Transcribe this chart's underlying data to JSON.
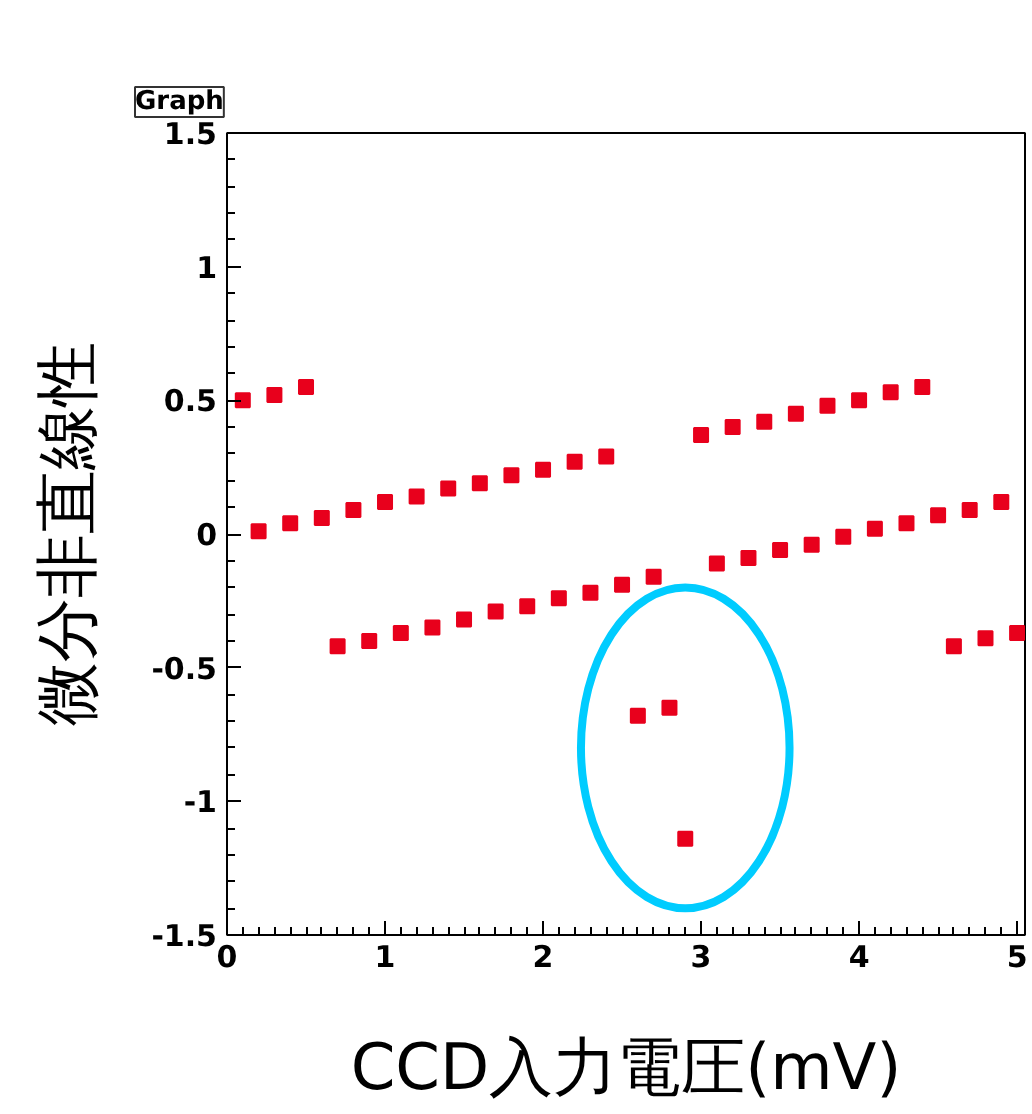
{
  "chart_data": {
    "type": "scatter",
    "title": "Graph",
    "xlabel": "CCD入力電圧(mV)",
    "ylabel": "微分非直線性",
    "xlim": [
      0,
      5.05
    ],
    "ylim": [
      -1.5,
      1.5
    ],
    "xticks": [
      0,
      1,
      2,
      3,
      4,
      5
    ],
    "yticks": [
      -1.5,
      -1,
      -0.5,
      0,
      0.5,
      1,
      1.5
    ],
    "grid": false,
    "marker": "square",
    "series": [
      {
        "color": "#e8001c",
        "x": [
          0.1,
          0.3,
          0.5,
          0.2,
          0.4,
          0.6,
          0.8,
          1.0,
          1.2,
          1.4,
          1.6,
          1.8,
          2.0,
          2.2,
          2.4,
          3.0,
          3.2,
          3.4,
          3.6,
          3.8,
          4.0,
          4.2,
          4.4,
          0.7,
          0.9,
          1.1,
          1.3,
          1.5,
          1.7,
          1.9,
          2.1,
          2.3,
          2.5,
          2.7,
          3.1,
          3.3,
          3.5,
          3.7,
          3.9,
          4.1,
          4.3,
          4.5,
          4.7,
          4.9,
          4.6,
          4.8,
          5.0,
          2.6,
          2.8,
          2.9
        ],
        "values": [
          0.5,
          0.52,
          0.55,
          0.01,
          0.04,
          0.06,
          0.09,
          0.12,
          0.14,
          0.17,
          0.19,
          0.22,
          0.24,
          0.27,
          0.29,
          0.37,
          0.4,
          0.42,
          0.45,
          0.48,
          0.5,
          0.53,
          0.55,
          -0.42,
          -0.4,
          -0.37,
          -0.35,
          -0.32,
          -0.29,
          -0.27,
          -0.24,
          -0.22,
          -0.19,
          -0.16,
          -0.11,
          -0.09,
          -0.06,
          -0.04,
          -0.01,
          0.02,
          0.04,
          0.07,
          0.09,
          0.12,
          -0.42,
          -0.39,
          -0.37,
          -0.68,
          -0.65,
          -1.14
        ]
      }
    ]
  }
}
